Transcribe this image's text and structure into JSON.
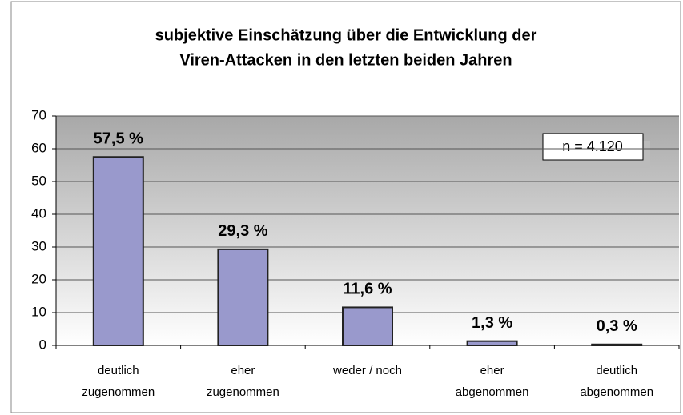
{
  "chart_data": {
    "type": "bar",
    "title": [
      "subjektive Einschätzung über die Entwicklung der",
      "Viren-Attacken in den letzten beiden Jahren"
    ],
    "categories": [
      [
        "deutlich",
        "zugenommen"
      ],
      [
        "eher",
        "zugenommen"
      ],
      [
        "weder / noch"
      ],
      [
        "eher",
        "abgenommen"
      ],
      [
        "deutlich",
        "abgenommen"
      ]
    ],
    "values": [
      57.5,
      29.3,
      11.6,
      1.3,
      0.3
    ],
    "value_labels": [
      "57,5 %",
      "29,3 %",
      "11,6 %",
      "1,3 %",
      "0,3 %"
    ],
    "color": "#9999cc",
    "ylim": [
      0,
      70
    ],
    "yticks": [
      0,
      10,
      20,
      30,
      40,
      50,
      60,
      70
    ],
    "grid": true,
    "annotation": "n = 4.120"
  }
}
